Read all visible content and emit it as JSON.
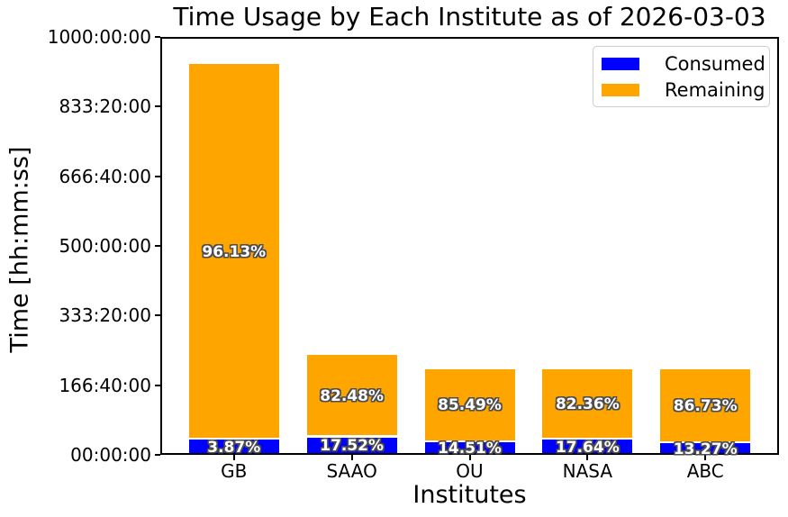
{
  "chart_data": {
    "type": "bar",
    "stacked": true,
    "title": "Time Usage by Each Institute as of 2026-03-03",
    "xlabel": "Institutes",
    "ylabel": "Time [hh:mm:ss]",
    "categories": [
      "GB",
      "SAAO",
      "OU",
      "NASA",
      "ABC"
    ],
    "series": [
      {
        "name": "Consumed",
        "color": "#0000ff",
        "values_hours": [
          36.2,
          42.0,
          29.8,
          36.2,
          27.2
        ],
        "percent_labels": [
          "3.87%",
          "17.52%",
          "14.51%",
          "17.64%",
          "13.27%"
        ]
      },
      {
        "name": "Remaining",
        "color": "#ffa500",
        "values_hours": [
          899.0,
          198.0,
          175.4,
          168.8,
          177.8
        ],
        "percent_labels": [
          "96.13%",
          "82.48%",
          "85.49%",
          "82.36%",
          "86.73%"
        ]
      }
    ],
    "totals_hours": [
      935.2,
      240.0,
      205.2,
      205.0,
      205.0
    ],
    "ylim_hours": [
      0,
      1000
    ],
    "yticks": [
      {
        "hours": 0,
        "label": "00:00:00"
      },
      {
        "hours": 166.6667,
        "label": "166:40:00"
      },
      {
        "hours": 333.3333,
        "label": "333:20:00"
      },
      {
        "hours": 500,
        "label": "500:00:00"
      },
      {
        "hours": 666.6667,
        "label": "666:40:00"
      },
      {
        "hours": 833.3333,
        "label": "833:20:00"
      },
      {
        "hours": 1000,
        "label": "1000:00:00"
      }
    ],
    "grid": false,
    "legend_position": "upper right",
    "bar_label_style": {
      "color": "#ffffff",
      "outline": "#4d4d4d",
      "bold": true
    }
  },
  "legend": {
    "items": [
      {
        "label": "Consumed",
        "color": "#0000ff"
      },
      {
        "label": "Remaining",
        "color": "#ffa500"
      }
    ]
  }
}
